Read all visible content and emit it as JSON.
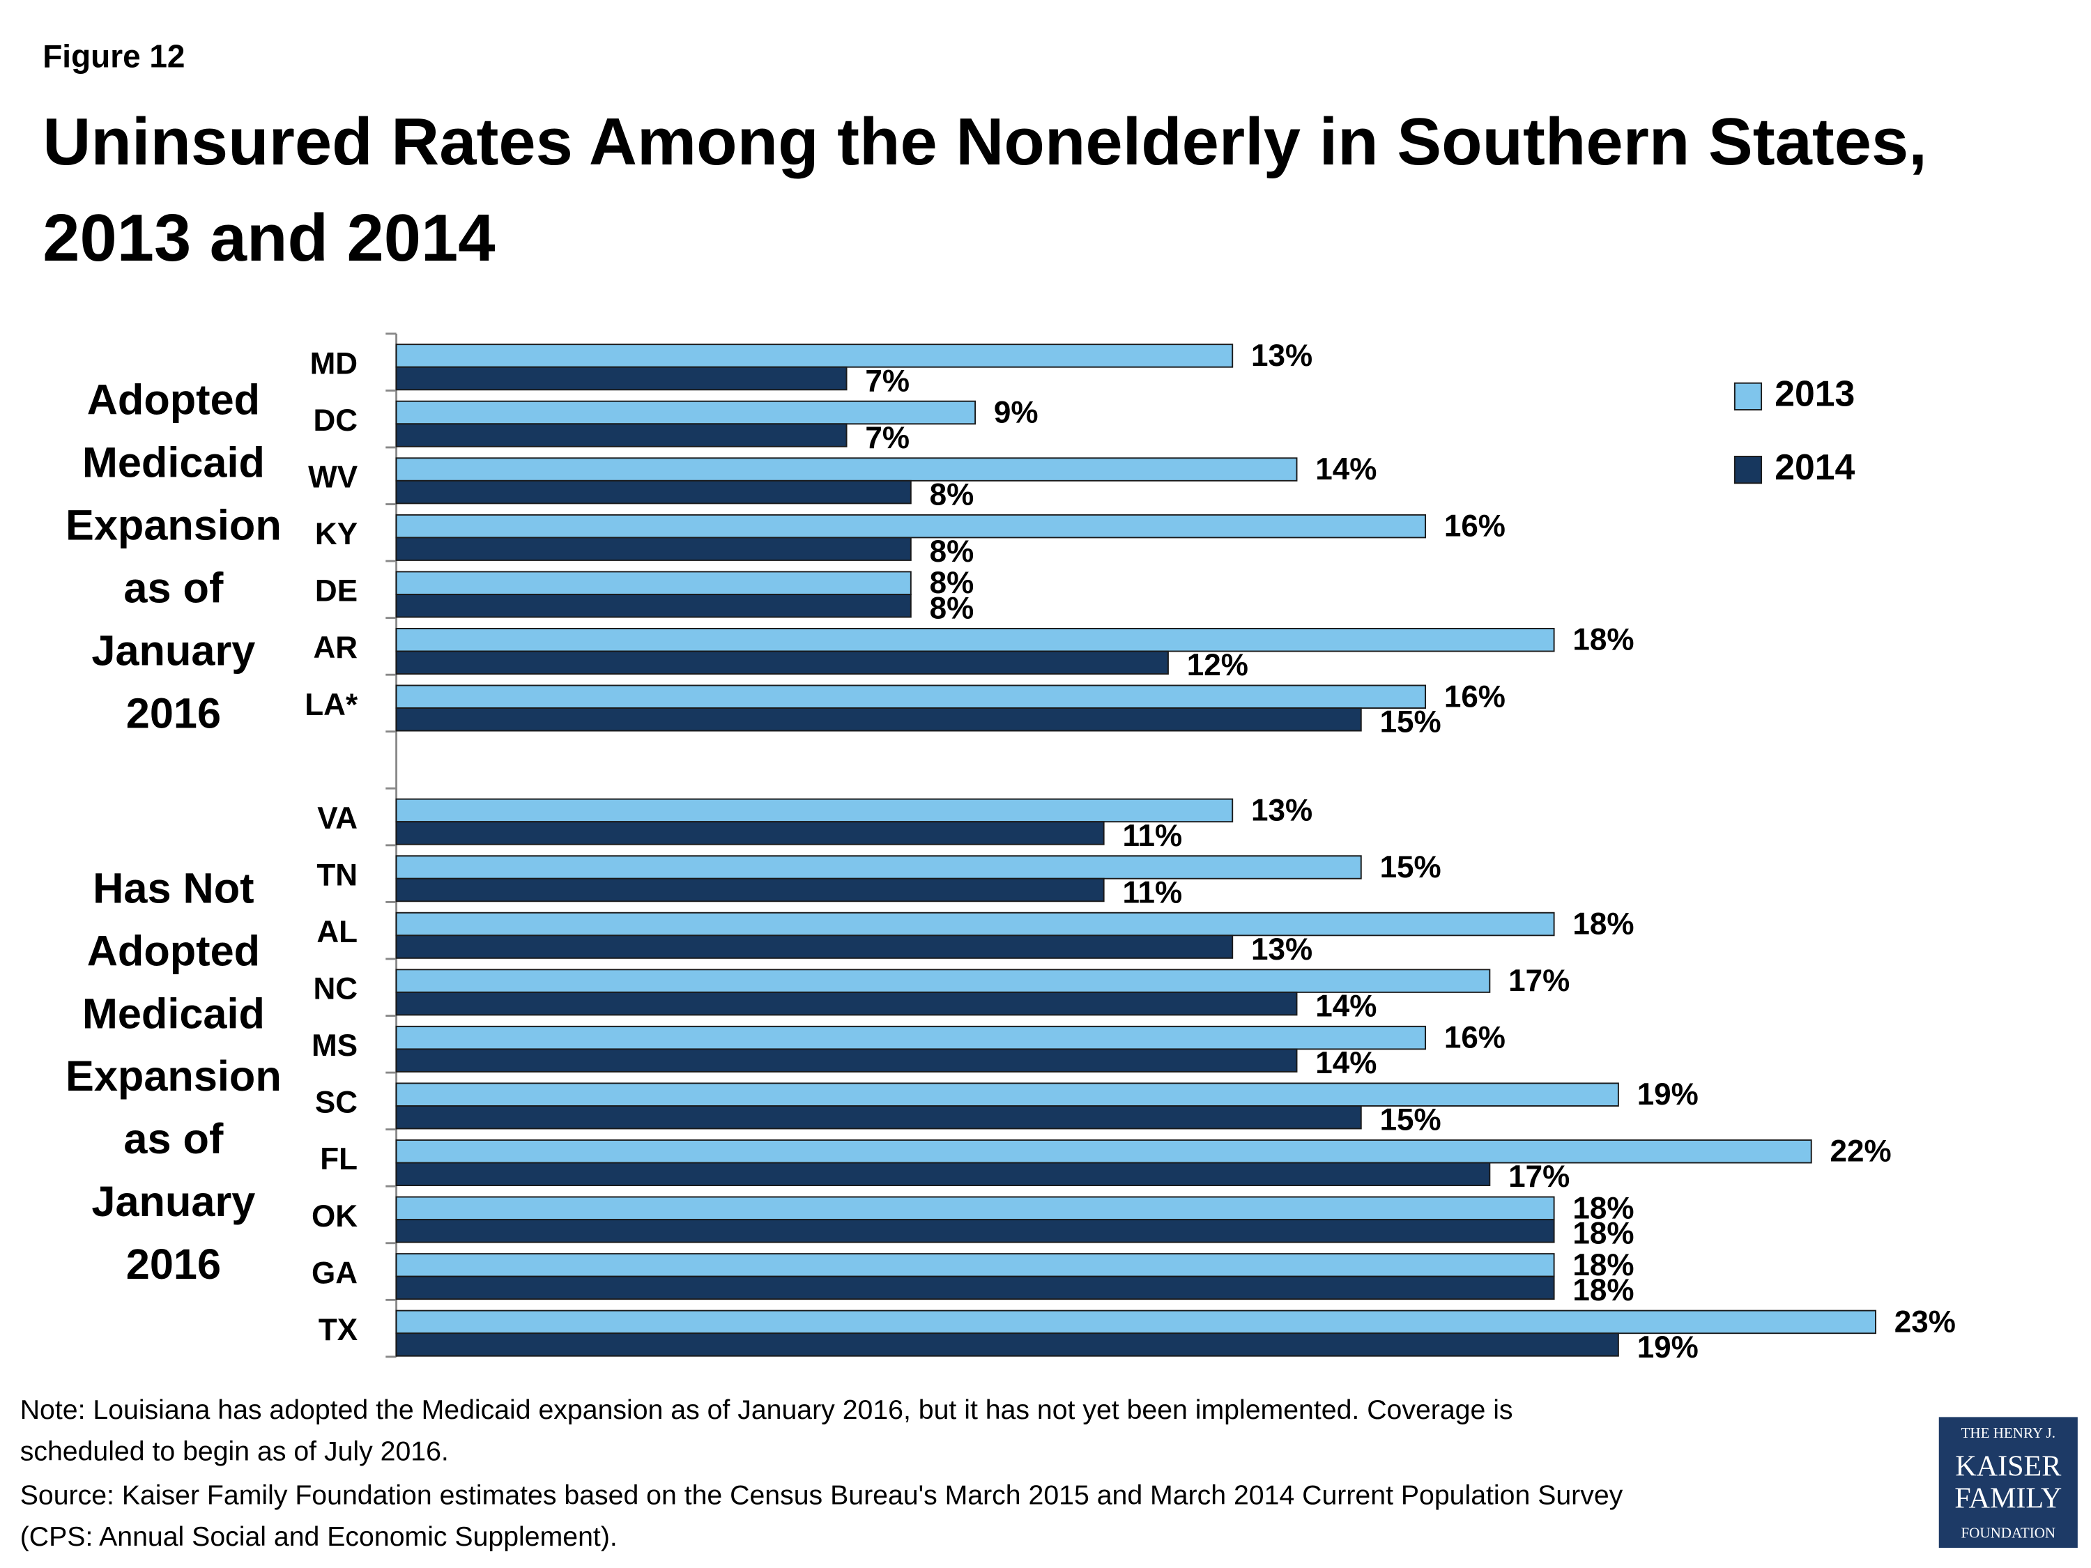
{
  "figure_label": "Figure 12",
  "chart_data": {
    "type": "bar",
    "orientation": "horizontal",
    "title": [
      "Uninsured Rates Among the Nonelderly in Southern States,",
      "2013 and 2014"
    ],
    "categories": [
      "MD",
      "DC",
      "WV",
      "KY",
      "DE",
      "AR",
      "LA*",
      null,
      "VA",
      "TN",
      "AL",
      "NC",
      "MS",
      "SC",
      "FL",
      "OK",
      "GA",
      "TX"
    ],
    "series": [
      {
        "name": "2013",
        "color": "#7fc5ec",
        "values": [
          13,
          9,
          14,
          16,
          8,
          18,
          16,
          null,
          13,
          15,
          18,
          17,
          16,
          19,
          22,
          18,
          18,
          23
        ],
        "value_labels": [
          "13%",
          "9%",
          "14%",
          "16%",
          "8%",
          "18%",
          "16%",
          null,
          "13%",
          "15%",
          "18%",
          "17%",
          "16%",
          "19%",
          "22%",
          "18%",
          "18%",
          "23%"
        ]
      },
      {
        "name": "2014",
        "color": "#17375e",
        "values": [
          7,
          7,
          8,
          8,
          8,
          12,
          15,
          null,
          11,
          11,
          13,
          14,
          14,
          15,
          17,
          18,
          18,
          19
        ],
        "value_labels": [
          "7%",
          "7%",
          "8%",
          "8%",
          "8%",
          "12%",
          "15%",
          null,
          "11%",
          "11%",
          "13%",
          "14%",
          "14%",
          "15%",
          "17%",
          "18%",
          "18%",
          "19%"
        ]
      }
    ],
    "groups": [
      {
        "lines": [
          "Adopted",
          "Medicaid",
          "Expansion",
          "as of",
          "January",
          "2016"
        ]
      },
      {
        "lines": [
          "Has Not",
          "Adopted",
          "Medicaid",
          "Expansion",
          "as of",
          "January",
          "2016"
        ]
      }
    ],
    "legend": "right"
  },
  "note": [
    "Note: Louisiana has adopted the Medicaid expansion as of January 2016, but it has not yet been implemented. Coverage is",
    "scheduled to begin as of July 2016."
  ],
  "source": [
    "Source: Kaiser Family Foundation estimates based on the Census Bureau's March 2015 and March 2014 Current Population Survey",
    "(CPS: Annual Social and Economic Supplement)."
  ],
  "logo": [
    "THE HENRY J.",
    "KAISER",
    "FAMILY",
    "FOUNDATION"
  ]
}
